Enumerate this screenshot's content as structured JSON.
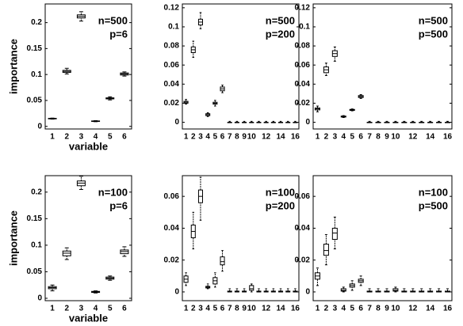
{
  "chart_data": [
    {
      "type": "box",
      "annotations": [
        "n=500",
        "p=6"
      ],
      "y_label": "importance",
      "x_label": "variable",
      "categories": [
        "1",
        "2",
        "3",
        "4",
        "5",
        "6"
      ],
      "boxes": [
        [
          0.014,
          0.0145,
          0.015,
          0.0155,
          0.016
        ],
        [
          0.101,
          0.104,
          0.106,
          0.108,
          0.112
        ],
        [
          0.203,
          0.209,
          0.212,
          0.215,
          0.221
        ],
        [
          0.009,
          0.0095,
          0.01,
          0.0105,
          0.011
        ],
        [
          0.051,
          0.053,
          0.054,
          0.055,
          0.057
        ],
        [
          0.097,
          0.099,
          0.101,
          0.103,
          0.105
        ]
      ],
      "ylim": [
        -0.005,
        0.236
      ],
      "yticks": [
        0,
        0.05,
        0.1,
        0.15,
        0.2
      ]
    },
    {
      "type": "box",
      "annotations": [
        "n=500",
        "p=200"
      ],
      "categories": [
        "1",
        "2",
        "3",
        "4",
        "5",
        "6",
        "7",
        "8",
        "9",
        "10",
        null,
        "12",
        null,
        "14",
        null,
        "16"
      ],
      "boxes": [
        [
          0.019,
          0.02,
          0.021,
          0.022,
          0.024
        ],
        [
          0.068,
          0.073,
          0.076,
          0.079,
          0.085
        ],
        [
          0.098,
          0.102,
          0.105,
          0.108,
          0.115
        ],
        [
          0.006,
          0.007,
          0.008,
          0.009,
          0.01
        ],
        [
          0.017,
          0.019,
          0.02,
          0.021,
          0.023
        ],
        [
          0.031,
          0.033,
          0.035,
          0.037,
          0.039
        ],
        [
          0,
          0,
          0,
          0,
          0.001
        ],
        [
          0,
          0,
          0,
          0,
          0.001
        ],
        [
          0,
          0,
          0,
          0,
          0.001
        ],
        [
          0,
          0,
          0,
          0,
          0.001
        ],
        [
          0,
          0,
          0,
          0,
          0.001
        ],
        [
          0,
          0,
          0,
          0,
          0.001
        ],
        [
          0,
          0,
          0,
          0,
          0.001
        ],
        [
          0,
          0,
          0,
          0,
          0.001
        ],
        [
          0,
          0,
          0,
          0,
          0.001
        ],
        [
          0,
          0,
          0,
          0,
          0.001
        ]
      ],
      "ylim": [
        -0.007,
        0.124
      ],
      "yticks": [
        0,
        0.02,
        0.04,
        0.06,
        0.08,
        0.1,
        0.12
      ]
    },
    {
      "type": "box",
      "annotations": [
        "n=500",
        "p=500"
      ],
      "categories": [
        "1",
        "2",
        "3",
        "4",
        "5",
        "6",
        "7",
        "8",
        "9",
        "10",
        null,
        "12",
        null,
        "14",
        null,
        "16"
      ],
      "boxes": [
        [
          0.011,
          0.013,
          0.014,
          0.015,
          0.017
        ],
        [
          0.049,
          0.052,
          0.055,
          0.058,
          0.062
        ],
        [
          0.064,
          0.069,
          0.072,
          0.075,
          0.079
        ],
        [
          0.005,
          0.0055,
          0.006,
          0.0065,
          0.007
        ],
        [
          0.012,
          0.0125,
          0.013,
          0.0135,
          0.014
        ],
        [
          0.025,
          0.026,
          0.027,
          0.028,
          0.029
        ],
        [
          0,
          0,
          0,
          0,
          0.001
        ],
        [
          0,
          0,
          0,
          0,
          0.001
        ],
        [
          0,
          0,
          0,
          0,
          0.001
        ],
        [
          0,
          0,
          0,
          0,
          0.001
        ],
        [
          0,
          0,
          0,
          0,
          0.001
        ],
        [
          0,
          0,
          0,
          0,
          0.001
        ],
        [
          0,
          0,
          0,
          0,
          0.001
        ],
        [
          0,
          0,
          0,
          0,
          0.001
        ],
        [
          0,
          0,
          0,
          0,
          0.001
        ],
        [
          0,
          0,
          0,
          0,
          0.001
        ]
      ],
      "ylim": [
        -0.007,
        0.124
      ],
      "yticks": [
        0,
        0.02,
        0.04,
        0.06,
        0.08,
        0.1,
        0.12
      ]
    },
    {
      "type": "box",
      "annotations": [
        "n=100",
        "p=6"
      ],
      "y_label": "importance",
      "x_label": "variable",
      "categories": [
        "1",
        "2",
        "3",
        "4",
        "5",
        "6"
      ],
      "boxes": [
        [
          0.014,
          0.018,
          0.02,
          0.022,
          0.025
        ],
        [
          0.073,
          0.08,
          0.085,
          0.089,
          0.095
        ],
        [
          0.205,
          0.212,
          0.217,
          0.221,
          0.23
        ],
        [
          0.01,
          0.011,
          0.012,
          0.013,
          0.014
        ],
        [
          0.034,
          0.036,
          0.038,
          0.04,
          0.042
        ],
        [
          0.079,
          0.084,
          0.088,
          0.091,
          0.097
        ]
      ],
      "ylim": [
        -0.0045,
        0.231
      ],
      "yticks": [
        0,
        0.05,
        0.1,
        0.15,
        0.2
      ]
    },
    {
      "type": "box",
      "annotations": [
        "n=100",
        "p=200"
      ],
      "categories": [
        "1",
        "2",
        "3",
        "4",
        "5",
        "6",
        "7",
        "8",
        "9",
        "10",
        null,
        "12",
        null,
        "14",
        null,
        "16"
      ],
      "boxes": [
        [
          0.004,
          0.006,
          0.008,
          0.01,
          0.012
        ],
        [
          0.027,
          0.034,
          0.038,
          0.042,
          0.05
        ],
        [
          0.045,
          0.056,
          0.06,
          0.064,
          0.072
        ],
        [
          0.002,
          0.0025,
          0.003,
          0.0035,
          0.005
        ],
        [
          0.003,
          0.005,
          0.007,
          0.009,
          0.012
        ],
        [
          0.013,
          0.017,
          0.019,
          0.022,
          0.026
        ],
        [
          0,
          0,
          0,
          0.0005,
          0.002
        ],
        [
          0,
          0,
          0,
          0.0005,
          0.002
        ],
        [
          0,
          0,
          0,
          0.0005,
          0.002
        ],
        [
          0,
          0.001,
          0.002,
          0.004,
          0.005
        ],
        [
          0,
          0,
          0,
          0.0005,
          0.002
        ],
        [
          0,
          0,
          0,
          0.0005,
          0.002
        ],
        [
          0,
          0,
          0,
          0.0005,
          0.002
        ],
        [
          0,
          0,
          0,
          0.0005,
          0.002
        ],
        [
          0,
          0,
          0,
          0.0005,
          0.002
        ],
        [
          0,
          0,
          0,
          0.0005,
          0.002
        ]
      ],
      "ylim": [
        -0.0055,
        0.073
      ],
      "yticks": [
        0,
        0.02,
        0.04,
        0.06
      ]
    },
    {
      "type": "box",
      "annotations": [
        "n=100",
        "p=500"
      ],
      "categories": [
        "1",
        "2",
        "3",
        "4",
        "5",
        "6",
        "7",
        "8",
        "9",
        "10",
        null,
        "12",
        null,
        "14",
        null,
        "16"
      ],
      "boxes": [
        [
          0.004,
          0.008,
          0.01,
          0.012,
          0.015
        ],
        [
          0.017,
          0.023,
          0.026,
          0.03,
          0.036
        ],
        [
          0.027,
          0.033,
          0.037,
          0.04,
          0.047
        ],
        [
          0,
          0.0005,
          0.001,
          0.002,
          0.003
        ],
        [
          0.001,
          0.003,
          0.004,
          0.005,
          0.007
        ],
        [
          0.004,
          0.006,
          0.007,
          0.008,
          0.01
        ],
        [
          0,
          0,
          0,
          0.0005,
          0.002
        ],
        [
          0,
          0,
          0,
          0.0005,
          0.002
        ],
        [
          0,
          0,
          0,
          0.0005,
          0.002
        ],
        [
          0,
          0.0005,
          0.001,
          0.002,
          0.003
        ],
        [
          0,
          0,
          0,
          0.0005,
          0.002
        ],
        [
          0,
          0,
          0,
          0.0005,
          0.002
        ],
        [
          0,
          0,
          0,
          0.0005,
          0.002
        ],
        [
          0,
          0,
          0,
          0.0005,
          0.002
        ],
        [
          0,
          0,
          0,
          0.0005,
          0.002
        ],
        [
          0,
          0,
          0,
          0.0005,
          0.002
        ]
      ],
      "ylim": [
        -0.0055,
        0.073
      ],
      "yticks": [
        0,
        0.02,
        0.04,
        0.06
      ]
    }
  ]
}
